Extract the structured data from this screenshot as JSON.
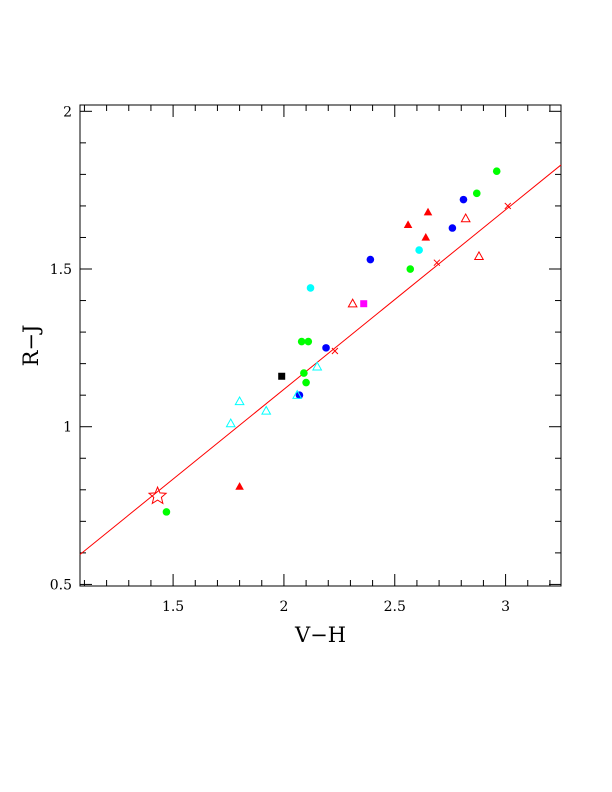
{
  "chart_data": {
    "type": "scatter",
    "xlabel": "V−H",
    "ylabel": "R−J",
    "xlim": [
      1.08,
      3.25
    ],
    "ylim": [
      0.495,
      2.02
    ],
    "xticks": [
      1.5,
      2,
      2.5,
      3
    ],
    "xtick_labels": [
      "1.5",
      "2",
      "2.5",
      "3"
    ],
    "yticks": [
      0.5,
      1,
      1.5,
      2
    ],
    "ytick_labels": [
      "0.5",
      "1",
      "1.5",
      "2"
    ],
    "grid": false,
    "colors": {
      "red": "#ff0000",
      "green": "#00ff00",
      "blue": "#0000ff",
      "cyan": "#00ffff",
      "magenta": "#ff00ff",
      "black": "#000000"
    },
    "fit_line": {
      "x": [
        1.08,
        3.25
      ],
      "y": [
        0.595,
        1.83
      ],
      "color": "#ff0000"
    },
    "series": [
      {
        "marker": "circle-filled",
        "color": "#00ff00",
        "x": [
          1.47,
          2.08,
          2.09,
          2.1,
          2.11,
          2.57,
          2.87,
          2.96
        ],
        "y": [
          0.73,
          1.27,
          1.17,
          1.14,
          1.27,
          1.5,
          1.74,
          1.81
        ]
      },
      {
        "marker": "circle-filled",
        "color": "#0000ff",
        "x": [
          2.07,
          2.19,
          2.39,
          2.76,
          2.81
        ],
        "y": [
          1.1,
          1.25,
          1.53,
          1.63,
          1.72
        ]
      },
      {
        "marker": "circle-filled",
        "color": "#00ffff",
        "x": [
          2.12,
          2.61
        ],
        "y": [
          1.44,
          1.56
        ]
      },
      {
        "marker": "triangle-filled",
        "color": "#ff0000",
        "x": [
          1.8,
          2.56,
          2.64,
          2.65
        ],
        "y": [
          0.81,
          1.64,
          1.6,
          1.68
        ]
      },
      {
        "marker": "triangle-open",
        "color": "#ff0000",
        "x": [
          2.31,
          2.82,
          2.88
        ],
        "y": [
          1.39,
          1.66,
          1.54
        ]
      },
      {
        "marker": "triangle-open",
        "color": "#00ffff",
        "x": [
          1.76,
          1.8,
          1.92,
          2.06,
          2.15
        ],
        "y": [
          1.01,
          1.08,
          1.05,
          1.1,
          1.19
        ]
      },
      {
        "marker": "cross",
        "color": "#ff0000",
        "x": [
          2.23,
          2.69,
          3.01
        ],
        "y": [
          1.24,
          1.52,
          1.7
        ]
      },
      {
        "marker": "square-filled",
        "color": "#000000",
        "x": [
          1.99
        ],
        "y": [
          1.16
        ]
      },
      {
        "marker": "square-filled",
        "color": "#ff00ff",
        "x": [
          2.36
        ],
        "y": [
          1.39
        ]
      },
      {
        "marker": "star-open",
        "color": "#ff0000",
        "x": [
          1.43
        ],
        "y": [
          0.78
        ]
      }
    ]
  }
}
